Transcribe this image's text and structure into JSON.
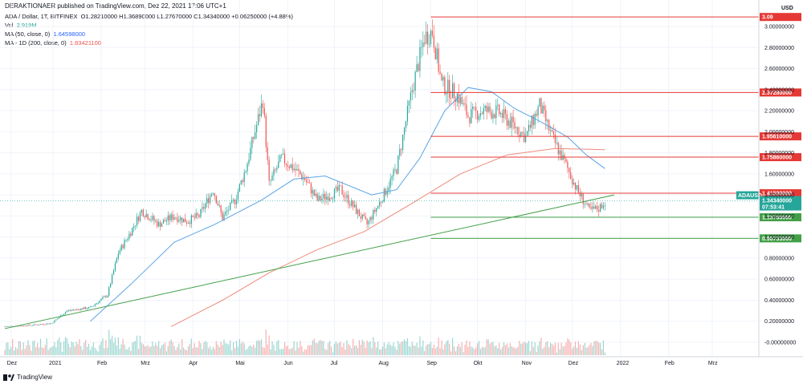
{
  "header": {
    "publisher_line": "DERAKTIONAER published on TradingView.com, Dez 22, 2021 17:06 UTC+1"
  },
  "legend": {
    "symbol": "ADA / Dollar, 1T, BITFINEX",
    "ohlc": "O1.28210000 H1.36890000 L1.27670000 C1.34340000 +0.06250000 (+4.88%)",
    "vol_label": "Vol",
    "vol_value": "2.919M",
    "ma50_label": "MA (50, close, 0)",
    "ma50_value": "1.64598000",
    "ma200_label": "MA - 1D (200, close, 0)",
    "ma200_value": "1.83421100"
  },
  "footer": {
    "brand": "TradingView"
  },
  "colors": {
    "up": "#26a69a",
    "down": "#ef5350",
    "ma50": "#5aa5e6",
    "ma200": "#ef8a7a",
    "resistance": "#e53935",
    "support": "#43a047",
    "trend": "#43a047",
    "current": "#26a69a"
  },
  "chart_data": {
    "type": "candlestick",
    "currency": "USD",
    "symbol_tag": "ADAUSD",
    "current_price": "1.34340000",
    "countdown": "07:53:41",
    "y_ticks": [
      "3.00000000",
      "2.80000000",
      "2.60000000",
      "2.40000000",
      "2.20000000",
      "2.00000000",
      "1.80000000",
      "1.60000000",
      "1.40000000",
      "1.20000000",
      "1.00000000",
      "0.80000000",
      "0.60000000",
      "0.40000000",
      "0.20000000",
      "-0.00000000"
    ],
    "x_ticks": [
      "Dez",
      "2021",
      "Feb",
      "Mrz",
      "Apr",
      "Mai",
      "Jun",
      "Jul",
      "Aug",
      "Sep",
      "Okt",
      "Nov",
      "Dez",
      "2022",
      "Feb",
      "Mrz"
    ],
    "horizontal_levels": [
      {
        "label": "3.09",
        "price": 3.09,
        "kind": "resistance"
      },
      {
        "label": "2.37280000",
        "price": 2.3728,
        "kind": "resistance"
      },
      {
        "label": "1.95610000",
        "price": 1.9561,
        "kind": "resistance"
      },
      {
        "label": "1.75860000",
        "price": 1.7586,
        "kind": "resistance"
      },
      {
        "label": "1.41590000",
        "price": 1.4159,
        "kind": "resistance"
      },
      {
        "label": "1.18760000",
        "price": 1.1876,
        "kind": "support"
      },
      {
        "label": "0.98733000",
        "price": 0.98733,
        "kind": "support"
      }
    ],
    "trendline": {
      "from": [
        "2020-12-01",
        0.13
      ],
      "to": [
        "2021-12-28",
        1.4
      ]
    },
    "close_path": [
      [
        "2020-12-01",
        0.15
      ],
      [
        "2020-12-15",
        0.16
      ],
      [
        "2020-12-31",
        0.18
      ],
      [
        "2021-01-10",
        0.3
      ],
      [
        "2021-01-25",
        0.33
      ],
      [
        "2021-02-05",
        0.45
      ],
      [
        "2021-02-12",
        0.85
      ],
      [
        "2021-02-20",
        1.05
      ],
      [
        "2021-02-27",
        1.25
      ],
      [
        "2021-03-10",
        1.12
      ],
      [
        "2021-03-20",
        1.2
      ],
      [
        "2021-03-28",
        1.15
      ],
      [
        "2021-04-05",
        1.2
      ],
      [
        "2021-04-14",
        1.45
      ],
      [
        "2021-04-20",
        1.18
      ],
      [
        "2021-04-28",
        1.35
      ],
      [
        "2021-05-05",
        1.65
      ],
      [
        "2021-05-16",
        2.3
      ],
      [
        "2021-05-20",
        1.5
      ],
      [
        "2021-05-28",
        1.75
      ],
      [
        "2021-06-05",
        1.65
      ],
      [
        "2021-06-12",
        1.55
      ],
      [
        "2021-06-20",
        1.35
      ],
      [
        "2021-06-28",
        1.4
      ],
      [
        "2021-07-05",
        1.45
      ],
      [
        "2021-07-15",
        1.25
      ],
      [
        "2021-07-22",
        1.12
      ],
      [
        "2021-07-31",
        1.35
      ],
      [
        "2021-08-10",
        1.65
      ],
      [
        "2021-08-20",
        2.4
      ],
      [
        "2021-08-28",
        2.9
      ],
      [
        "2021-09-02",
        2.95
      ],
      [
        "2021-09-08",
        2.45
      ],
      [
        "2021-09-18",
        2.35
      ],
      [
        "2021-09-25",
        2.15
      ],
      [
        "2021-10-05",
        2.2
      ],
      [
        "2021-10-15",
        2.18
      ],
      [
        "2021-10-25",
        2.05
      ],
      [
        "2021-11-01",
        1.95
      ],
      [
        "2021-11-10",
        2.25
      ],
      [
        "2021-11-18",
        1.95
      ],
      [
        "2021-11-28",
        1.65
      ],
      [
        "2021-12-04",
        1.45
      ],
      [
        "2021-12-12",
        1.25
      ],
      [
        "2021-12-18",
        1.27
      ],
      [
        "2021-12-22",
        1.34
      ]
    ],
    "ma50_path": [
      [
        "2021-01-25",
        0.2
      ],
      [
        "2021-02-20",
        0.55
      ],
      [
        "2021-03-20",
        0.95
      ],
      [
        "2021-04-15",
        1.12
      ],
      [
        "2021-05-15",
        1.35
      ],
      [
        "2021-06-05",
        1.55
      ],
      [
        "2021-06-25",
        1.58
      ],
      [
        "2021-07-25",
        1.4
      ],
      [
        "2021-08-10",
        1.45
      ],
      [
        "2021-08-25",
        1.75
      ],
      [
        "2021-09-10",
        2.2
      ],
      [
        "2021-09-25",
        2.42
      ],
      [
        "2021-10-10",
        2.38
      ],
      [
        "2021-10-25",
        2.22
      ],
      [
        "2021-11-10",
        2.1
      ],
      [
        "2021-11-28",
        1.95
      ],
      [
        "2021-12-10",
        1.78
      ],
      [
        "2021-12-22",
        1.65
      ]
    ],
    "ma200_path": [
      [
        "2021-03-18",
        0.15
      ],
      [
        "2021-04-20",
        0.4
      ],
      [
        "2021-05-20",
        0.66
      ],
      [
        "2021-06-20",
        0.88
      ],
      [
        "2021-07-20",
        1.05
      ],
      [
        "2021-08-20",
        1.32
      ],
      [
        "2021-09-20",
        1.6
      ],
      [
        "2021-10-20",
        1.78
      ],
      [
        "2021-11-20",
        1.84
      ],
      [
        "2021-12-22",
        1.83
      ]
    ]
  }
}
